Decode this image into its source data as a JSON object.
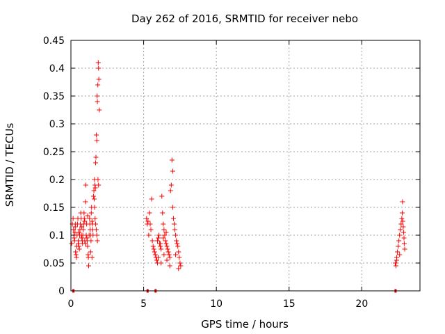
{
  "chart_data": {
    "type": "scatter",
    "title": "Day 262 of 2016, SRMTID for receiver nebo",
    "xlabel": "GPS time / hours",
    "ylabel": "SRMTID / TECUs",
    "xlim": [
      0,
      24
    ],
    "ylim": [
      0,
      0.45
    ],
    "xticks": [
      0,
      5,
      10,
      15,
      20
    ],
    "xtick_labels": [
      "0",
      "5",
      "10",
      "15",
      "20"
    ],
    "yticks": [
      0,
      0.05,
      0.1,
      0.15,
      0.2,
      0.25,
      0.3,
      0.35,
      0.4,
      0.45
    ],
    "ytick_labels": [
      "0",
      "0.05",
      "0.1",
      "0.15",
      "0.2",
      "0.25",
      "0.3",
      "0.35",
      "0.4",
      "0.45"
    ],
    "grid": true,
    "marker": "plus",
    "color": "#ff0000",
    "zero_marker_color": "#dd0000",
    "zero_markers": [
      {
        "x": [
          0.1,
          0.2
        ]
      },
      {
        "x": [
          5.2,
          5.3
        ]
      },
      {
        "x": [
          5.75,
          5.85
        ]
      },
      {
        "x": [
          22.25,
          22.35
        ]
      }
    ],
    "series": [
      {
        "values": [
          [
            0.05,
            0.085
          ],
          [
            0.1,
            0.12
          ],
          [
            0.15,
            0.13
          ],
          [
            0.18,
            0.11
          ],
          [
            0.2,
            0.1
          ],
          [
            0.22,
            0.095
          ],
          [
            0.25,
            0.09
          ],
          [
            0.28,
            0.105
          ],
          [
            0.3,
            0.115
          ],
          [
            0.32,
            0.07
          ],
          [
            0.35,
            0.065
          ],
          [
            0.38,
            0.06
          ],
          [
            0.4,
            0.08
          ],
          [
            0.42,
            0.1
          ],
          [
            0.45,
            0.12
          ],
          [
            0.48,
            0.13
          ],
          [
            0.5,
            0.09
          ],
          [
            0.52,
            0.085
          ],
          [
            0.55,
            0.08
          ],
          [
            0.58,
            0.075
          ],
          [
            0.6,
            0.1
          ],
          [
            0.62,
            0.11
          ],
          [
            0.65,
            0.12
          ],
          [
            0.68,
            0.14
          ],
          [
            0.7,
            0.13
          ],
          [
            0.72,
            0.1
          ],
          [
            0.75,
            0.095
          ],
          [
            0.78,
            0.09
          ],
          [
            0.8,
            0.085
          ],
          [
            0.82,
            0.1
          ],
          [
            0.85,
            0.11
          ],
          [
            0.88,
            0.12
          ],
          [
            0.9,
            0.14
          ],
          [
            0.92,
            0.13
          ],
          [
            0.95,
            0.09
          ],
          [
            0.98,
            0.085
          ],
          [
            1.0,
            0.16
          ],
          [
            1.02,
            0.19
          ],
          [
            1.05,
            0.1
          ],
          [
            1.08,
            0.12
          ],
          [
            1.1,
            0.095
          ],
          [
            1.12,
            0.09
          ],
          [
            1.15,
            0.08
          ],
          [
            1.18,
            0.065
          ],
          [
            1.2,
            0.06
          ],
          [
            1.22,
            0.045
          ],
          [
            1.25,
            0.1
          ],
          [
            1.28,
            0.13
          ],
          [
            1.3,
            0.12
          ],
          [
            1.32,
            0.11
          ],
          [
            1.35,
            0.1
          ],
          [
            1.38,
            0.09
          ],
          [
            1.4,
            0.14
          ],
          [
            1.42,
            0.15
          ],
          [
            1.45,
            0.125
          ],
          [
            1.48,
            0.12
          ],
          [
            1.5,
            0.11
          ],
          [
            1.52,
            0.1
          ],
          [
            1.55,
            0.17
          ],
          [
            1.58,
            0.18
          ],
          [
            1.6,
            0.165
          ],
          [
            1.62,
            0.2
          ],
          [
            1.65,
            0.19
          ],
          [
            1.68,
            0.185
          ],
          [
            1.7,
            0.23
          ],
          [
            1.72,
            0.24
          ],
          [
            1.75,
            0.28
          ],
          [
            1.78,
            0.27
          ],
          [
            1.8,
            0.35
          ],
          [
            1.82,
            0.34
          ],
          [
            1.85,
            0.37
          ],
          [
            1.88,
            0.41
          ],
          [
            1.9,
            0.4
          ],
          [
            1.92,
            0.38
          ],
          [
            1.95,
            0.325
          ],
          [
            1.62,
            0.15
          ],
          [
            1.66,
            0.13
          ],
          [
            1.7,
            0.12
          ],
          [
            1.74,
            0.11
          ],
          [
            1.78,
            0.1
          ],
          [
            1.82,
            0.09
          ],
          [
            1.86,
            0.2
          ],
          [
            1.9,
            0.19
          ],
          [
            0.3,
            0.12
          ],
          [
            0.55,
            0.105
          ],
          [
            0.75,
            0.115
          ],
          [
            0.95,
            0.125
          ],
          [
            1.15,
            0.135
          ],
          [
            1.35,
            0.07
          ],
          [
            1.45,
            0.06
          ]
        ]
      },
      {
        "values": [
          [
            5.2,
            0.13
          ],
          [
            5.25,
            0.12
          ],
          [
            5.3,
            0.125
          ],
          [
            5.35,
            0.1
          ],
          [
            5.4,
            0.14
          ],
          [
            5.45,
            0.12
          ],
          [
            5.5,
            0.11
          ],
          [
            5.55,
            0.165
          ],
          [
            5.6,
            0.09
          ],
          [
            5.65,
            0.08
          ],
          [
            5.7,
            0.075
          ],
          [
            5.75,
            0.07
          ],
          [
            5.8,
            0.065
          ],
          [
            5.85,
            0.06
          ],
          [
            5.9,
            0.055
          ],
          [
            5.95,
            0.05
          ],
          [
            6.0,
            0.095
          ],
          [
            6.05,
            0.1
          ],
          [
            6.1,
            0.085
          ],
          [
            6.15,
            0.08
          ],
          [
            6.2,
            0.075
          ],
          [
            6.25,
            0.17
          ],
          [
            6.3,
            0.14
          ],
          [
            6.35,
            0.12
          ],
          [
            6.4,
            0.11
          ],
          [
            6.45,
            0.1
          ],
          [
            6.5,
            0.09
          ],
          [
            6.55,
            0.085
          ],
          [
            6.6,
            0.08
          ],
          [
            6.65,
            0.075
          ],
          [
            6.7,
            0.07
          ],
          [
            6.75,
            0.065
          ],
          [
            6.8,
            0.06
          ],
          [
            6.85,
            0.18
          ],
          [
            6.9,
            0.19
          ],
          [
            6.95,
            0.235
          ],
          [
            7.0,
            0.215
          ],
          [
            7.05,
            0.13
          ],
          [
            7.1,
            0.12
          ],
          [
            7.15,
            0.11
          ],
          [
            7.2,
            0.1
          ],
          [
            7.25,
            0.09
          ],
          [
            7.3,
            0.085
          ],
          [
            7.35,
            0.08
          ],
          [
            7.4,
            0.07
          ],
          [
            7.45,
            0.06
          ],
          [
            7.5,
            0.05
          ],
          [
            7.55,
            0.045
          ],
          [
            6.0,
            0.06
          ],
          [
            6.2,
            0.05
          ],
          [
            6.4,
            0.065
          ],
          [
            6.6,
            0.055
          ],
          [
            6.8,
            0.045
          ],
          [
            7.0,
            0.15
          ],
          [
            7.2,
            0.065
          ],
          [
            7.4,
            0.04
          ],
          [
            5.95,
            0.09
          ],
          [
            6.15,
            0.085
          ],
          [
            6.35,
            0.095
          ],
          [
            6.55,
            0.105
          ]
        ]
      },
      {
        "values": [
          [
            22.3,
            0.05
          ],
          [
            22.35,
            0.045
          ],
          [
            22.4,
            0.06
          ],
          [
            22.45,
            0.07
          ],
          [
            22.5,
            0.08
          ],
          [
            22.55,
            0.09
          ],
          [
            22.6,
            0.1
          ],
          [
            22.65,
            0.11
          ],
          [
            22.7,
            0.12
          ],
          [
            22.75,
            0.13
          ],
          [
            22.78,
            0.14
          ],
          [
            22.8,
            0.16
          ],
          [
            22.82,
            0.125
          ],
          [
            22.85,
            0.115
          ],
          [
            22.88,
            0.105
          ],
          [
            22.9,
            0.095
          ],
          [
            22.92,
            0.085
          ],
          [
            22.95,
            0.075
          ],
          [
            22.4,
            0.055
          ],
          [
            22.6,
            0.065
          ]
        ]
      }
    ]
  }
}
